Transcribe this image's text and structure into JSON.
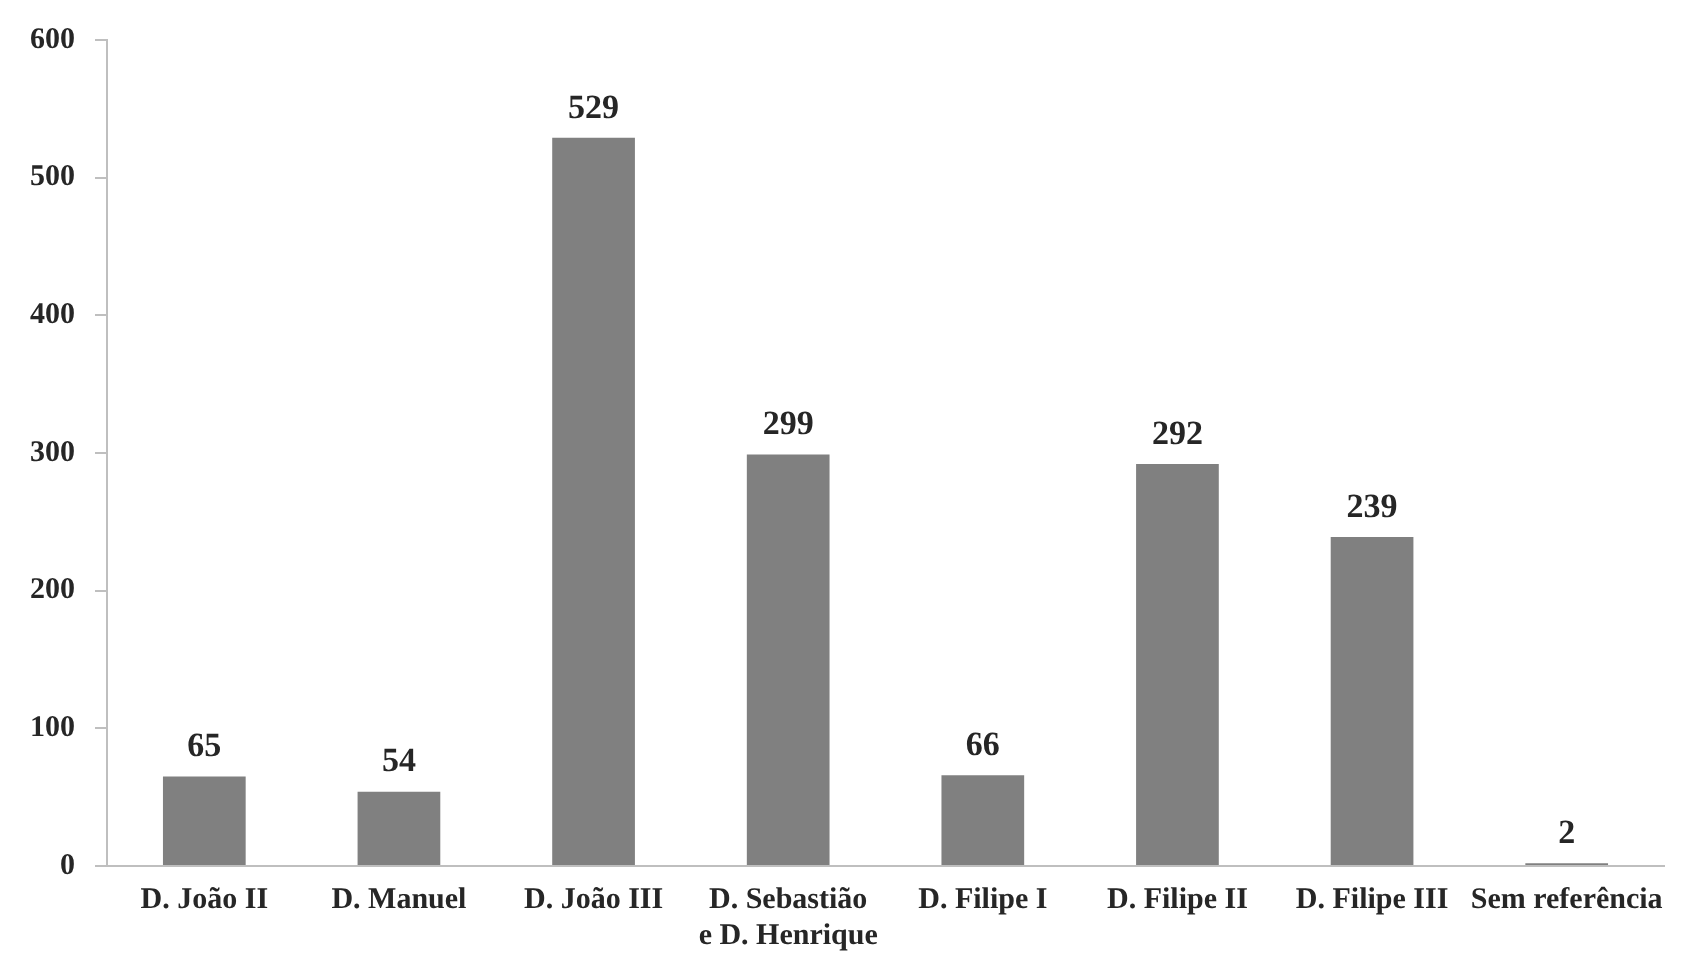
{
  "chart_data": {
    "type": "bar",
    "categories": [
      "D. João II",
      "D. Manuel",
      "D. João III",
      "D. Sebastião e D. Henrique",
      "D. Filipe I",
      "D. Filipe II",
      "D. Filipe III",
      "Sem referência"
    ],
    "values": [
      65,
      54,
      529,
      299,
      66,
      292,
      239,
      2
    ],
    "color": "#808080",
    "ylim": [
      0,
      600
    ],
    "yticks": [
      0,
      100,
      200,
      300,
      400,
      500,
      600
    ],
    "grid": false,
    "data_labels": true
  }
}
